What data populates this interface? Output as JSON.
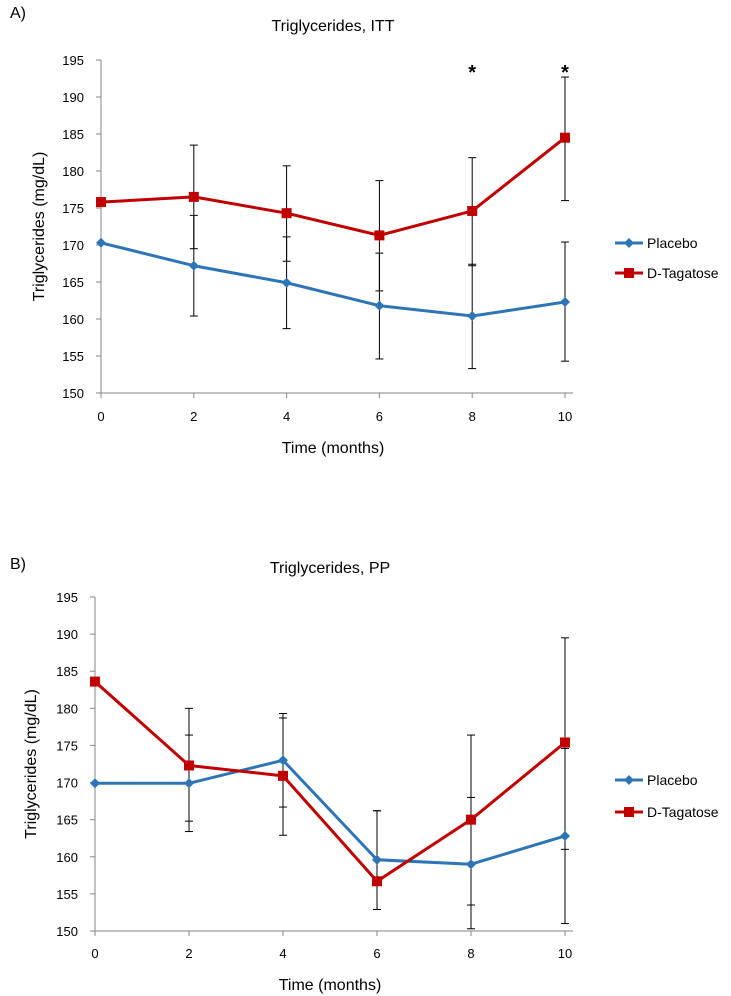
{
  "chart_data": [
    {
      "type": "line",
      "panel_label": "A)",
      "title": "Triglycerides, ITT",
      "xlabel": "Time (months)",
      "ylabel": "Triglycerides (mg/dL)",
      "x": [
        0,
        2,
        4,
        6,
        8,
        10
      ],
      "x_ticks": [
        "0",
        "2",
        "4",
        "6",
        "8",
        "10"
      ],
      "xlim": [
        0,
        10
      ],
      "ylim": [
        150,
        195
      ],
      "y_ticks": [
        "150",
        "155",
        "160",
        "165",
        "170",
        "175",
        "180",
        "185",
        "190",
        "195"
      ],
      "grid": false,
      "legend_position": "right",
      "series": [
        {
          "name": "Placebo",
          "color": "#2E75B6",
          "marker": "diamond",
          "values": [
            170.3,
            167.2,
            164.9,
            161.8,
            160.4,
            162.3
          ],
          "err_low": [
            null,
            160.4,
            158.7,
            154.6,
            153.3,
            154.3
          ],
          "err_high": [
            null,
            174.0,
            171.1,
            168.9,
            167.4,
            170.4
          ]
        },
        {
          "name": "D-Tagatose",
          "color": "#C00000",
          "marker": "square",
          "values": [
            175.8,
            176.5,
            174.3,
            171.3,
            174.6,
            184.5
          ],
          "err_low": [
            null,
            169.5,
            167.8,
            163.8,
            167.2,
            176.0
          ],
          "err_high": [
            null,
            183.5,
            180.7,
            178.7,
            181.8,
            192.7
          ]
        }
      ],
      "annotations": [
        {
          "text": "*",
          "x": 8
        },
        {
          "text": "*",
          "x": 10
        }
      ]
    },
    {
      "type": "line",
      "panel_label": "B)",
      "title": "Triglycerides, PP",
      "xlabel": "Time (months)",
      "ylabel": "Triglycerides (mg/dL)",
      "x": [
        0,
        2,
        4,
        6,
        8,
        10
      ],
      "x_ticks": [
        "0",
        "2",
        "4",
        "6",
        "8",
        "10"
      ],
      "xlim": [
        0,
        10
      ],
      "ylim": [
        150,
        195
      ],
      "y_ticks": [
        "150",
        "155",
        "160",
        "165",
        "170",
        "175",
        "180",
        "185",
        "190",
        "195"
      ],
      "grid": false,
      "legend_position": "right",
      "series": [
        {
          "name": "Placebo",
          "color": "#2E75B6",
          "marker": "diamond",
          "values": [
            169.9,
            169.9,
            173.0,
            159.6,
            159.0,
            162.8
          ],
          "err_low": [
            null,
            163.4,
            166.7,
            152.9,
            150.3,
            151.0
          ],
          "err_high": [
            null,
            176.4,
            179.3,
            166.2,
            168.0,
            174.6
          ]
        },
        {
          "name": "D-Tagatose",
          "color": "#C00000",
          "marker": "square",
          "values": [
            183.6,
            172.3,
            170.9,
            156.7,
            165.0,
            175.4
          ],
          "err_low": [
            null,
            164.8,
            162.9,
            156.7,
            153.5,
            161.0
          ],
          "err_high": [
            null,
            180.0,
            178.7,
            166.2,
            176.4,
            189.5
          ]
        }
      ],
      "annotations": []
    }
  ]
}
